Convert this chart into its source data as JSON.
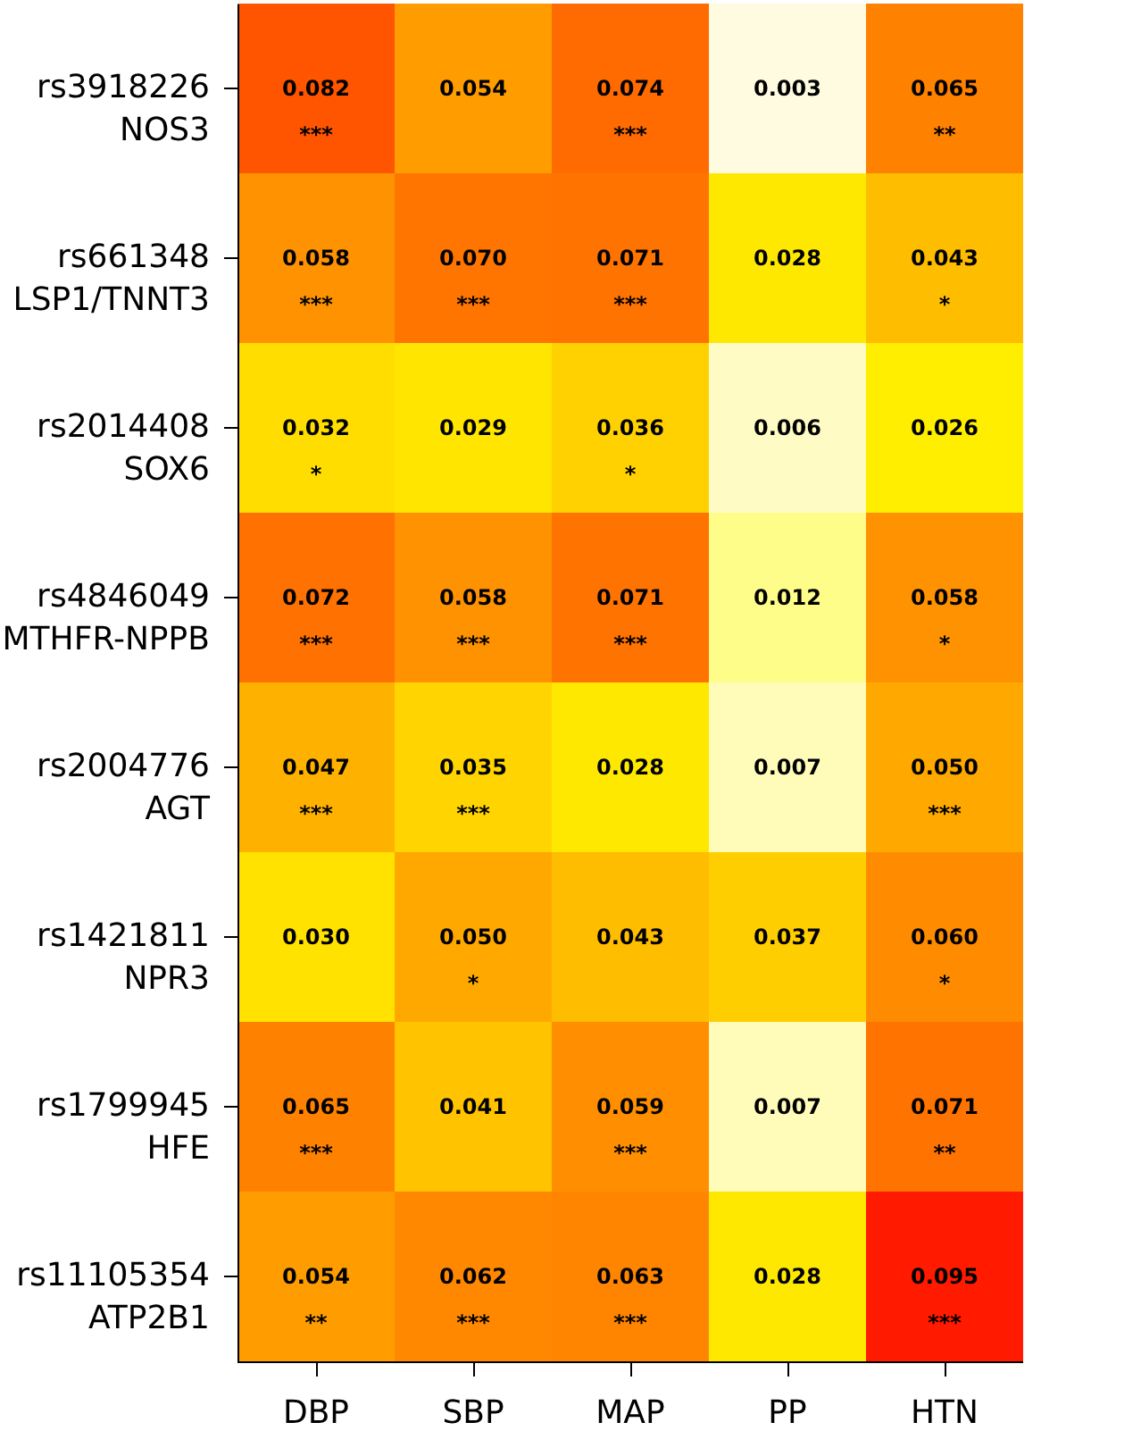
{
  "chart_data": {
    "type": "heatmap",
    "categories": [
      "DBP",
      "SBP",
      "MAP",
      "PP",
      "HTN"
    ],
    "y_categories": [
      "rs3918226\nNOS3",
      "rs661348\nLSP1/TNNT3",
      "rs2014408\nSOX6",
      "rs4846049\nMTHFR-NPPB",
      "rs2004776\nAGT",
      "rs1421811\nNPR3",
      "rs1799945\nHFE",
      "rs11105354\nATP2B1"
    ],
    "cells": [
      [
        0.082,
        0.054,
        0.074,
        0.003,
        0.065
      ],
      [
        0.058,
        0.07,
        0.071,
        0.028,
        0.043
      ],
      [
        0.032,
        0.029,
        0.036,
        0.006,
        0.026
      ],
      [
        0.072,
        0.058,
        0.071,
        0.012,
        0.058
      ],
      [
        0.047,
        0.035,
        0.028,
        0.007,
        0.05
      ],
      [
        0.03,
        0.05,
        0.043,
        0.037,
        0.06
      ],
      [
        0.065,
        0.041,
        0.059,
        0.007,
        0.071
      ],
      [
        0.054,
        0.062,
        0.063,
        0.028,
        0.095
      ]
    ],
    "cell_labels": [
      [
        "0.082\n***",
        "0.054",
        "0.074\n***",
        "0.003",
        "0.065\n**"
      ],
      [
        "0.058\n***",
        "0.070\n***",
        "0.071\n***",
        "0.028",
        "0.043\n*"
      ],
      [
        "0.032\n*",
        "0.029",
        "0.036\n*",
        "0.006",
        "0.026"
      ],
      [
        "0.072\n***",
        "0.058\n***",
        "0.071\n***",
        "0.012",
        "0.058\n*"
      ],
      [
        "0.047\n***",
        "0.035\n***",
        "0.028",
        "0.007",
        "0.050\n***"
      ],
      [
        "0.030",
        "0.050\n*",
        "0.043",
        "0.037",
        "0.060\n*"
      ],
      [
        "0.065\n***",
        "0.041",
        "0.059\n***",
        "0.007",
        "0.071\n**"
      ],
      [
        "0.054\n**",
        "0.062\n***",
        "0.063\n***",
        "0.028",
        "0.095\n***"
      ]
    ]
  }
}
